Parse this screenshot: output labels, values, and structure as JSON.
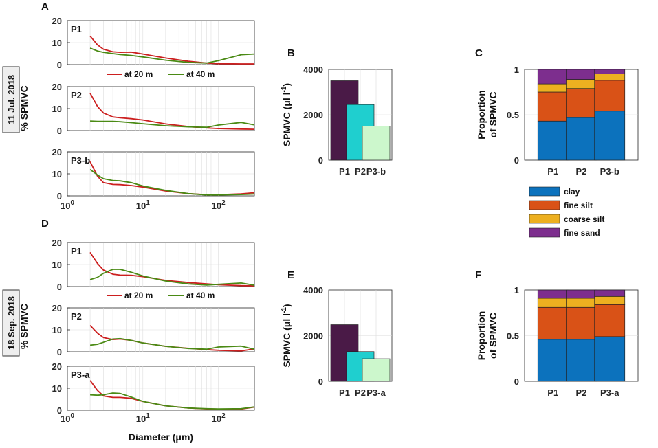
{
  "colors": {
    "line20": "#cc1f1f",
    "line40": "#4a8a14",
    "P1": "#4a1a47",
    "P2": "#1fcfcf",
    "P3": "#ccf7cc",
    "clay": "#0c72bd",
    "fine silt": "#d95217",
    "coarse silt": "#edb020",
    "fine sand": "#7d2e8e"
  },
  "dates": [
    "11 Jul. 2018",
    "18 Sep. 2018"
  ],
  "chart_data": [
    {
      "id": "A",
      "panel_label": "A",
      "type": "line",
      "xscale": "log",
      "xlim": [
        1,
        300
      ],
      "ylim": [
        0,
        20
      ],
      "x_ticks": [
        {
          "base": "10",
          "exp": "0"
        },
        {
          "base": "10",
          "exp": "1"
        },
        {
          "base": "10",
          "exp": "2"
        }
      ],
      "yticks": [
        "0",
        "10",
        "20"
      ],
      "ylabel": "% SPMVC",
      "xlabel": "",
      "legend": [
        "at 20 m",
        "at 40 m"
      ],
      "subplots": [
        {
          "label": "P1",
          "series": [
            {
              "name": "at 20 m",
              "x": [
                2,
                2.5,
                3,
                4,
                5,
                7,
                10,
                20,
                40,
                70,
                100,
                200,
                300
              ],
              "y": [
                13,
                9,
                7,
                5.8,
                5.6,
                5.7,
                4.8,
                3,
                1.5,
                0.7,
                0.4,
                0.3,
                0.3
              ]
            },
            {
              "name": "at 40 m",
              "x": [
                2,
                2.5,
                3,
                4,
                5,
                7,
                10,
                20,
                40,
                70,
                100,
                200,
                300
              ],
              "y": [
                7.5,
                6.2,
                5.6,
                5,
                4.6,
                4.2,
                3.5,
                2,
                1,
                0.7,
                1.8,
                4.5,
                4.8
              ]
            }
          ]
        },
        {
          "label": "P2",
          "series": [
            {
              "name": "at 20 m",
              "x": [
                2,
                2.5,
                3,
                4,
                5,
                7,
                10,
                20,
                40,
                70,
                100,
                200,
                300
              ],
              "y": [
                17,
                11,
                8,
                6.2,
                5.8,
                5.4,
                4.8,
                3,
                1.8,
                1.2,
                0.9,
                0.7,
                0.6
              ]
            },
            {
              "name": "at 40 m",
              "x": [
                2,
                2.5,
                3,
                4,
                5,
                7,
                10,
                20,
                40,
                70,
                100,
                200,
                300
              ],
              "y": [
                4.3,
                4.2,
                4.2,
                4.2,
                4,
                3.6,
                3.1,
                2.2,
                1.7,
                1.5,
                2.5,
                3.7,
                2.6
              ]
            }
          ]
        },
        {
          "label": "P3-b",
          "series": [
            {
              "name": "at 20 m",
              "x": [
                2,
                2.5,
                3,
                4,
                5,
                7,
                10,
                20,
                40,
                70,
                100,
                200,
                300
              ],
              "y": [
                15.5,
                9,
                6,
                5.2,
                5.1,
                4.7,
                4,
                2.2,
                1,
                0.5,
                0.5,
                0.9,
                1.4
              ]
            },
            {
              "name": "at 40 m",
              "x": [
                2,
                2.5,
                3,
                4,
                5,
                7,
                10,
                20,
                40,
                70,
                100,
                200,
                300
              ],
              "y": [
                12,
                9.5,
                7.8,
                7,
                6.8,
                6,
                4.5,
                2.5,
                1,
                0.4,
                0.4,
                0.6,
                0.8
              ]
            }
          ]
        }
      ]
    },
    {
      "id": "B",
      "panel_label": "B",
      "type": "bar",
      "categories": [
        "P1",
        "P2",
        "P3-b"
      ],
      "values": [
        3500,
        2450,
        1500
      ],
      "ylim": [
        0,
        4000
      ],
      "yticks": [
        "0",
        "2000",
        "4000"
      ],
      "ylabel": "SPMVC (μl l",
      "ylabel_sup": "-1",
      "ylabel_end": ")"
    },
    {
      "id": "C",
      "panel_label": "C",
      "type": "bar",
      "stacked": true,
      "categories": [
        "P1",
        "P2",
        "P3-b"
      ],
      "ylim": [
        0,
        1
      ],
      "yticks": [
        "0",
        "0.5",
        "1"
      ],
      "ylabel": [
        "Proportion",
        "of SPMVC"
      ],
      "series": [
        {
          "name": "clay",
          "values": [
            0.43,
            0.47,
            0.54
          ]
        },
        {
          "name": "fine silt",
          "values": [
            0.32,
            0.32,
            0.34
          ]
        },
        {
          "name": "coarse silt",
          "values": [
            0.09,
            0.1,
            0.07
          ]
        },
        {
          "name": "fine sand",
          "values": [
            0.16,
            0.11,
            0.05
          ]
        }
      ],
      "legend": [
        "clay",
        "fine silt",
        "coarse silt",
        "fine sand"
      ]
    },
    {
      "id": "D",
      "panel_label": "D",
      "type": "line",
      "xscale": "log",
      "xlim": [
        1,
        300
      ],
      "ylim": [
        0,
        20
      ],
      "x_ticks": [
        {
          "base": "10",
          "exp": "0"
        },
        {
          "base": "10",
          "exp": "1"
        },
        {
          "base": "10",
          "exp": "2"
        }
      ],
      "yticks": [
        "0",
        "10",
        "20"
      ],
      "ylabel": "% SPMVC",
      "xlabel": "Diameter (μm)",
      "legend": [
        "at 20 m",
        "at 40 m"
      ],
      "subplots": [
        {
          "label": "P1",
          "series": [
            {
              "name": "at 20 m",
              "x": [
                2,
                2.5,
                3,
                4,
                5,
                7,
                10,
                20,
                40,
                70,
                100,
                200,
                300
              ],
              "y": [
                15.5,
                10.5,
                7.5,
                5.6,
                5.2,
                5.1,
                4.5,
                2.8,
                1.8,
                1.2,
                0.8,
                0.4,
                0.3
              ]
            },
            {
              "name": "at 40 m",
              "x": [
                2,
                2.5,
                3,
                4,
                5,
                7,
                10,
                20,
                40,
                70,
                100,
                200,
                300
              ],
              "y": [
                3.2,
                4.2,
                6,
                7.8,
                7.8,
                6.5,
                4.8,
                2.5,
                1.2,
                0.7,
                1,
                1.6,
                0.6
              ]
            }
          ]
        },
        {
          "label": "P2",
          "series": [
            {
              "name": "at 20 m",
              "x": [
                2,
                2.5,
                3,
                4,
                5,
                7,
                10,
                20,
                40,
                70,
                100,
                200,
                300
              ],
              "y": [
                12,
                8.5,
                6.5,
                5.6,
                5.8,
                5.2,
                4,
                2.5,
                1.6,
                1,
                0.7,
                0.4,
                1.3
              ]
            },
            {
              "name": "at 40 m",
              "x": [
                2,
                2.5,
                3,
                4,
                5,
                7,
                10,
                20,
                40,
                70,
                100,
                200,
                300
              ],
              "y": [
                3,
                3.4,
                4.3,
                5.8,
                6,
                5.2,
                4,
                2.5,
                1.5,
                1.2,
                2.2,
                2.6,
                1.2
              ]
            }
          ]
        },
        {
          "label": "P3-a",
          "series": [
            {
              "name": "at 20 m",
              "x": [
                2,
                2.5,
                3,
                4,
                5,
                7,
                10,
                20,
                40,
                70,
                100,
                200,
                300
              ],
              "y": [
                13.5,
                9,
                6.5,
                5.8,
                5.8,
                5.4,
                4,
                2,
                1,
                0.6,
                0.5,
                0.5,
                1.4
              ]
            },
            {
              "name": "at 40 m",
              "x": [
                2,
                2.5,
                3,
                4,
                5,
                7,
                10,
                20,
                40,
                70,
                100,
                200,
                300
              ],
              "y": [
                7,
                6.8,
                7,
                7.8,
                7.6,
                6,
                4,
                2,
                1,
                0.7,
                0.6,
                0.7,
                1.5
              ]
            }
          ]
        }
      ]
    },
    {
      "id": "E",
      "panel_label": "E",
      "type": "bar",
      "categories": [
        "P1",
        "P2",
        "P3-a"
      ],
      "values": [
        2480,
        1300,
        990
      ],
      "ylim": [
        0,
        4000
      ],
      "yticks": [
        "0",
        "2000",
        "4000"
      ],
      "ylabel": "SPMVC (μl l",
      "ylabel_sup": "-1",
      "ylabel_end": ")"
    },
    {
      "id": "F",
      "panel_label": "F",
      "type": "bar",
      "stacked": true,
      "categories": [
        "P1",
        "P2",
        "P3-a"
      ],
      "ylim": [
        0,
        1
      ],
      "yticks": [
        "0",
        "0.5",
        "1"
      ],
      "ylabel": [
        "Proportion",
        "of SPMVC"
      ],
      "series": [
        {
          "name": "clay",
          "values": [
            0.46,
            0.46,
            0.49
          ]
        },
        {
          "name": "fine silt",
          "values": [
            0.35,
            0.35,
            0.35
          ]
        },
        {
          "name": "coarse silt",
          "values": [
            0.1,
            0.1,
            0.09
          ]
        },
        {
          "name": "fine sand",
          "values": [
            0.09,
            0.09,
            0.07
          ]
        }
      ]
    }
  ]
}
